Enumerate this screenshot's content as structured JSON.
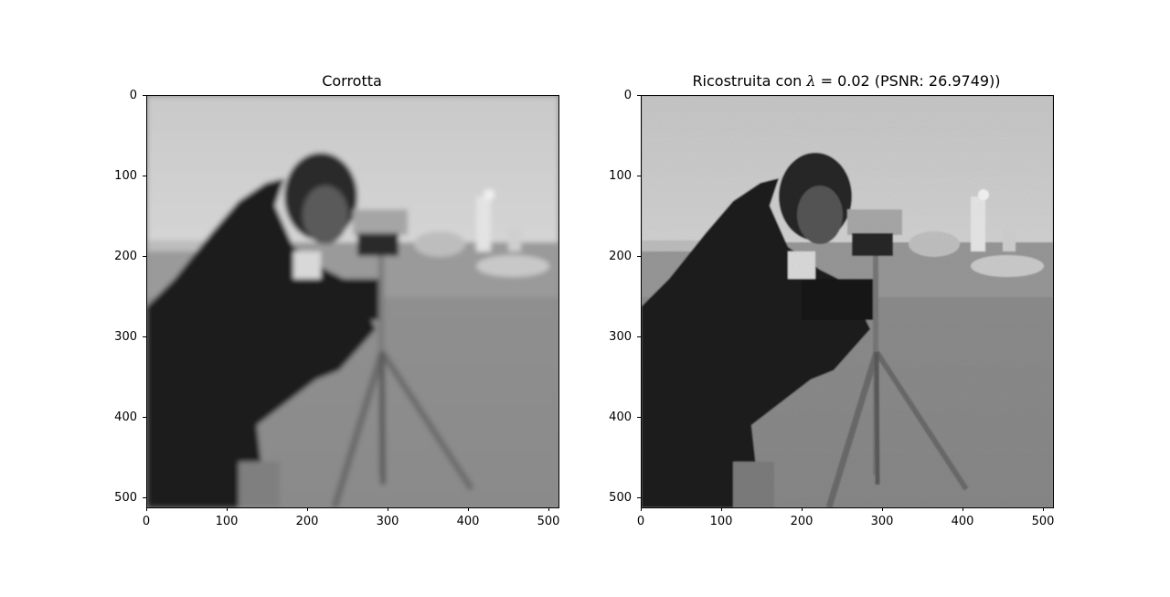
{
  "figure": {
    "panels": [
      {
        "title": "Corrotta",
        "x_ticks": [
          "0",
          "100",
          "200",
          "300",
          "400",
          "500"
        ],
        "y_ticks": [
          "0",
          "100",
          "200",
          "300",
          "400",
          "500"
        ],
        "image_description_variant": "blurred"
      },
      {
        "title_prefix": "Ricostruita con ",
        "title_lambda": "λ",
        "title_suffix": " = 0.02 (PSNR: 26.9749))",
        "x_ticks": [
          "0",
          "100",
          "200",
          "300",
          "400",
          "500"
        ],
        "y_ticks": [
          "0",
          "100",
          "200",
          "300",
          "400",
          "500"
        ],
        "image_description_variant": "reconstructed-noisy"
      }
    ]
  }
}
